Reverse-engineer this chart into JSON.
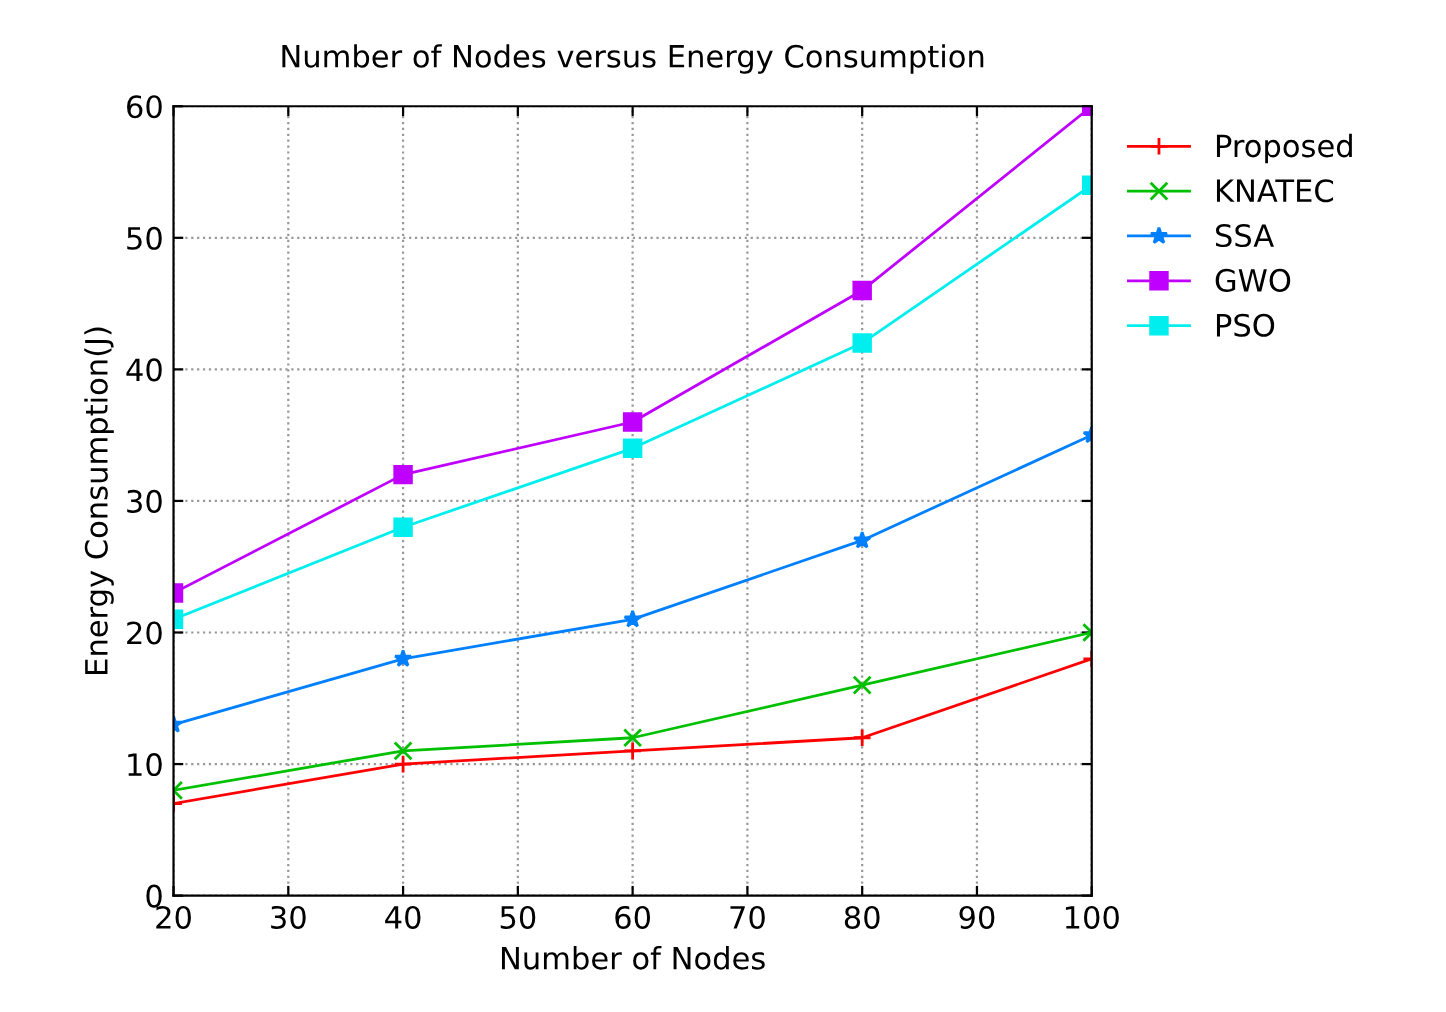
{
  "chart_data": {
    "type": "line",
    "title": "Number of Nodes versus Energy Consumption",
    "xlabel": "Number of Nodes",
    "ylabel": "Energy Consumption(J)",
    "x": [
      20,
      40,
      60,
      80,
      100
    ],
    "series": [
      {
        "name": "Proposed",
        "color": "#ff0000",
        "marker": "plus",
        "values": [
          7,
          10,
          11,
          12,
          18
        ]
      },
      {
        "name": "KNATEC",
        "color": "#00c000",
        "marker": "cross",
        "values": [
          8,
          11,
          12,
          16,
          20
        ]
      },
      {
        "name": "SSA",
        "color": "#0080ff",
        "marker": "star",
        "values": [
          13,
          18,
          21,
          27,
          35
        ]
      },
      {
        "name": "GWO",
        "color": "#c000ff",
        "marker": "square",
        "values": [
          23,
          32,
          36,
          46,
          60
        ]
      },
      {
        "name": "PSO",
        "color": "#00eeee",
        "marker": "square",
        "values": [
          21,
          28,
          34,
          42,
          54
        ]
      }
    ],
    "xlim": [
      20,
      100
    ],
    "xticks": [
      20,
      30,
      40,
      50,
      60,
      70,
      80,
      90,
      100
    ],
    "ylim": [
      0,
      60
    ],
    "yticks": [
      0,
      10,
      20,
      30,
      40,
      50,
      60
    ],
    "grid": true,
    "legend": "top right",
    "line_style": "solid"
  }
}
